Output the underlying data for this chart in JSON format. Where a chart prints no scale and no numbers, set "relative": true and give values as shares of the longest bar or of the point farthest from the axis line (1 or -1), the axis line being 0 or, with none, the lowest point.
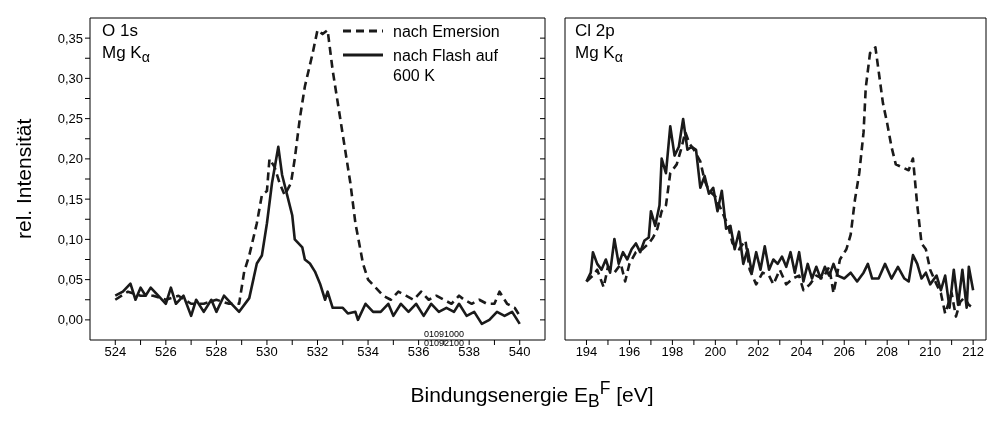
{
  "chart_data": [
    {
      "type": "line",
      "ylabel": "rel. Intensität",
      "xlabel": "Bindungsenergie E$_{B}$$^{F}$  [eV]",
      "annotations": [
        "O 1s",
        "Mg K$_{α}$",
        "01091000",
        "01092100"
      ],
      "legend": "top right",
      "xlim": [
        523,
        541
      ],
      "xticks": [
        524,
        {
          "value": 525,
          "label": null
        },
        526,
        {
          "value": 527,
          "label": null
        },
        528,
        {
          "value": 529,
          "label": null
        },
        530,
        {
          "value": 531,
          "label": null
        },
        532,
        {
          "value": 533,
          "label": null
        },
        534,
        {
          "value": 535,
          "label": null
        },
        536,
        {
          "value": 537,
          "label": null
        },
        538,
        {
          "value": 539,
          "label": null
        },
        540
      ],
      "ylim": [
        -0.025,
        0.375
      ],
      "yticks": [
        {
          "value": 0,
          "label": "0,00"
        },
        {
          "value": 0.025,
          "label": null
        },
        {
          "value": 0.05,
          "label": "0,05"
        },
        {
          "value": 0.075,
          "label": null
        },
        {
          "value": 0.1,
          "label": "0,10"
        },
        {
          "value": 0.125,
          "label": null
        },
        {
          "value": 0.15,
          "label": "0,15"
        },
        {
          "value": 0.175,
          "label": null
        },
        {
          "value": 0.2,
          "label": "0,20"
        },
        {
          "value": 0.225,
          "label": null
        },
        {
          "value": 0.25,
          "label": "0,25"
        },
        {
          "value": 0.275,
          "label": null
        },
        {
          "value": 0.3,
          "label": "0,30"
        },
        {
          "value": 0.325,
          "label": null
        },
        {
          "value": 0.35,
          "label": "0,35"
        }
      ],
      "series": [
        {
          "name": "nach Emersion",
          "color": "#1a1a1a",
          "line_style": "dashed",
          "x": [
            524.0,
            524.5,
            525.0,
            525.5,
            526.0,
            526.5,
            527.0,
            527.5,
            528.0,
            528.5,
            528.9,
            529.1,
            529.3,
            529.6,
            529.8,
            530.0,
            530.1,
            530.3,
            530.5,
            530.7,
            530.95,
            531.1,
            531.3,
            531.5,
            531.8,
            532.0,
            532.2,
            532.4,
            532.6,
            532.9,
            533.1,
            533.3,
            533.5,
            533.8,
            534.0,
            534.3,
            534.6,
            534.9,
            535.2,
            535.5,
            535.8,
            536.1,
            536.4,
            536.7,
            537.0,
            537.3,
            537.6,
            537.8,
            538.1,
            538.4,
            538.7,
            539.0,
            539.2,
            539.5,
            539.8,
            540.0
          ],
          "values": [
            0.025,
            0.035,
            0.03,
            0.03,
            0.025,
            0.03,
            0.02,
            0.02,
            0.025,
            0.02,
            0.02,
            0.06,
            0.08,
            0.12,
            0.155,
            0.16,
            0.2,
            0.19,
            0.17,
            0.155,
            0.17,
            0.2,
            0.25,
            0.29,
            0.33,
            0.36,
            0.355,
            0.36,
            0.31,
            0.25,
            0.21,
            0.17,
            0.12,
            0.07,
            0.05,
            0.04,
            0.03,
            0.025,
            0.035,
            0.03,
            0.025,
            0.035,
            0.025,
            0.03,
            0.025,
            0.02,
            0.03,
            0.025,
            0.02,
            0.025,
            0.02,
            0.02,
            0.035,
            0.02,
            0.015,
            0.005
          ]
        },
        {
          "name": "nach Flash auf 600 K",
          "color": "#1a1a1a",
          "line_style": "solid",
          "x": [
            524.0,
            524.3,
            524.6,
            524.8,
            525.0,
            525.2,
            525.4,
            525.7,
            526.0,
            526.2,
            526.4,
            526.7,
            527.0,
            527.2,
            527.5,
            527.8,
            528.0,
            528.3,
            528.6,
            528.9,
            529.3,
            529.6,
            529.8,
            530.0,
            530.2,
            530.45,
            530.6,
            530.8,
            531.0,
            531.1,
            531.4,
            531.5,
            531.7,
            531.9,
            532.1,
            532.3,
            532.4,
            532.6,
            533.0,
            533.2,
            533.5,
            533.6,
            533.9,
            534.2,
            534.5,
            534.8,
            535.0,
            535.3,
            535.6,
            535.9,
            536.2,
            536.5,
            536.8,
            537.1,
            537.4,
            537.6,
            537.9,
            538.2,
            538.5,
            538.8,
            539.1,
            539.4,
            539.7,
            540.0
          ],
          "values": [
            0.03,
            0.035,
            0.045,
            0.025,
            0.04,
            0.03,
            0.04,
            0.03,
            0.02,
            0.04,
            0.02,
            0.03,
            0.005,
            0.025,
            0.01,
            0.025,
            0.01,
            0.03,
            0.02,
            0.01,
            0.027,
            0.07,
            0.08,
            0.12,
            0.17,
            0.215,
            0.18,
            0.155,
            0.13,
            0.1,
            0.09,
            0.075,
            0.07,
            0.06,
            0.045,
            0.025,
            0.035,
            0.015,
            0.015,
            0.008,
            0.01,
            0.0,
            0.02,
            0.01,
            0.01,
            0.02,
            0.005,
            0.02,
            0.01,
            0.02,
            0.005,
            0.02,
            0.01,
            0.015,
            0.01,
            0.02,
            0.005,
            0.01,
            -0.005,
            0.0,
            0.01,
            0.005,
            0.01,
            -0.005
          ]
        }
      ]
    },
    {
      "type": "line",
      "annotations": [
        "Cl 2p",
        "Mg K$_{α}$"
      ],
      "relative": true,
      "tick_labels": "x",
      "xlim": [
        193,
        212.6
      ],
      "xticks": [
        194,
        {
          "value": 195,
          "label": null
        },
        196,
        {
          "value": 197,
          "label": null
        },
        198,
        {
          "value": 199,
          "label": null
        },
        200,
        {
          "value": 201,
          "label": null
        },
        202,
        {
          "value": 203,
          "label": null
        },
        204,
        {
          "value": 205,
          "label": null
        },
        206,
        {
          "value": 207,
          "label": null
        },
        208,
        {
          "value": 209,
          "label": null
        },
        210,
        {
          "value": 211,
          "label": null
        },
        212
      ],
      "series": [
        {
          "color": "#1a1a1a",
          "line_style": "dashed",
          "x": [
            194.0,
            194.3,
            194.5,
            194.8,
            195.0,
            195.3,
            195.6,
            195.8,
            196.0,
            196.3,
            196.6,
            196.9,
            197.1,
            197.3,
            197.5,
            197.7,
            197.9,
            198.2,
            198.4,
            198.6,
            198.8,
            199.0,
            199.3,
            199.5,
            199.7,
            200.0,
            200.3,
            200.6,
            200.8,
            201.1,
            201.4,
            201.6,
            201.9,
            202.2,
            202.5,
            202.7,
            203.0,
            203.3,
            203.6,
            203.9,
            204.1,
            204.4,
            204.7,
            205.0,
            205.3,
            205.5,
            205.8,
            206.1,
            206.3,
            206.5,
            206.7,
            206.9,
            207.0,
            207.2,
            207.45,
            207.6,
            207.8,
            208.0,
            208.2,
            208.4,
            208.7,
            209.0,
            209.2,
            209.4,
            209.6,
            209.8,
            210.0,
            210.3,
            210.5,
            210.7,
            211.0,
            211.2,
            211.4,
            211.6,
            211.8,
            212.0
          ],
          "values": [
            0.2,
            0.22,
            0.24,
            0.18,
            0.25,
            0.23,
            0.26,
            0.2,
            0.26,
            0.3,
            0.31,
            0.33,
            0.35,
            0.38,
            0.44,
            0.46,
            0.57,
            0.6,
            0.65,
            0.71,
            0.67,
            0.65,
            0.61,
            0.545,
            0.51,
            0.49,
            0.44,
            0.39,
            0.33,
            0.31,
            0.34,
            0.24,
            0.19,
            0.23,
            0.22,
            0.19,
            0.24,
            0.19,
            0.21,
            0.22,
            0.17,
            0.19,
            0.22,
            0.21,
            0.25,
            0.16,
            0.275,
            0.31,
            0.36,
            0.48,
            0.57,
            0.71,
            0.86,
            0.98,
            1,
            0.92,
            0.81,
            0.74,
            0.66,
            0.6,
            0.59,
            0.58,
            0.62,
            0.46,
            0.33,
            0.31,
            0.24,
            0.19,
            0.16,
            0.09,
            0.16,
            0.08,
            0.13,
            0.145,
            0.12,
            0.11
          ]
        },
        {
          "color": "#1a1a1a",
          "line_style": "solid",
          "x": [
            194.0,
            194.2,
            194.3,
            194.5,
            194.7,
            194.9,
            195.1,
            195.3,
            195.5,
            195.7,
            195.9,
            196.1,
            196.3,
            196.5,
            196.7,
            196.9,
            197.0,
            197.2,
            197.4,
            197.5,
            197.7,
            197.9,
            198.1,
            198.3,
            198.5,
            198.7,
            198.9,
            199.1,
            199.3,
            199.5,
            199.7,
            199.9,
            200.1,
            200.3,
            200.5,
            200.7,
            200.9,
            201.1,
            201.3,
            201.5,
            201.7,
            201.9,
            202.1,
            202.3,
            202.5,
            202.7,
            202.9,
            203.1,
            203.3,
            203.5,
            203.7,
            203.9,
            204.1,
            204.3,
            204.5,
            204.7,
            204.9,
            205.1,
            205.3,
            205.5,
            205.7,
            206.0,
            206.3,
            206.6,
            206.9,
            207.1,
            207.3,
            207.6,
            207.9,
            208.2,
            208.5,
            208.8,
            209.0,
            209.2,
            209.4,
            209.6,
            209.8,
            210.0,
            210.3,
            210.5,
            210.7,
            210.9,
            211.1,
            211.3,
            211.5,
            211.7,
            211.8,
            212.0
          ],
          "values": [
            0.2,
            0.23,
            0.3,
            0.26,
            0.24,
            0.275,
            0.23,
            0.345,
            0.26,
            0.3,
            0.275,
            0.31,
            0.33,
            0.3,
            0.34,
            0.35,
            0.44,
            0.39,
            0.46,
            0.62,
            0.57,
            0.73,
            0.63,
            0.66,
            0.755,
            0.65,
            0.66,
            0.65,
            0.52,
            0.56,
            0.5,
            0.52,
            0.44,
            0.51,
            0.38,
            0.39,
            0.31,
            0.37,
            0.26,
            0.31,
            0.23,
            0.3,
            0.24,
            0.32,
            0.24,
            0.275,
            0.26,
            0.285,
            0.25,
            0.3,
            0.23,
            0.3,
            0.2,
            0.26,
            0.21,
            0.25,
            0.21,
            0.25,
            0.22,
            0.26,
            0.22,
            0.21,
            0.23,
            0.2,
            0.23,
            0.26,
            0.21,
            0.21,
            0.26,
            0.21,
            0.25,
            0.21,
            0.2,
            0.29,
            0.26,
            0.21,
            0.23,
            0.19,
            0.22,
            0.17,
            0.22,
            0.11,
            0.24,
            0.12,
            0.24,
            0.11,
            0.25,
            0.17
          ]
        }
      ]
    }
  ]
}
